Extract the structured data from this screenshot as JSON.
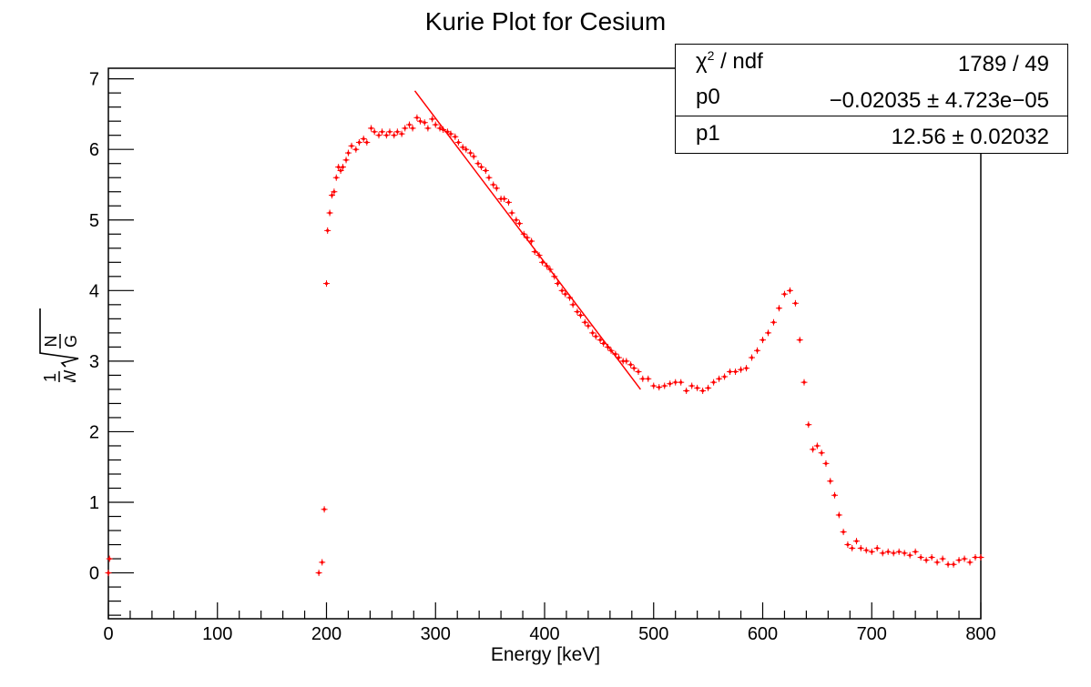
{
  "chart_data": {
    "type": "scatter",
    "title": "Kurie Plot for Cesium",
    "xlabel": "Energy [keV]",
    "ylabel": {
      "num1": "1",
      "den1": "W",
      "num2": "N",
      "den2": "G"
    },
    "xlim": [
      0,
      800
    ],
    "ylim": [
      -0.65,
      7.15
    ],
    "xticks": [
      0,
      100,
      200,
      300,
      400,
      500,
      600,
      700,
      800
    ],
    "xtick_labels": [
      "0",
      "100",
      "200",
      "300",
      "400",
      "500",
      "600",
      "700",
      "800"
    ],
    "yticks": [
      0,
      1,
      2,
      3,
      4,
      5,
      6,
      7
    ],
    "ytick_labels": [
      "0",
      "1",
      "2",
      "3",
      "4",
      "5",
      "6",
      "7"
    ],
    "marker_color": "#ff0000",
    "series": [
      {
        "x": [
          0,
          1,
          193,
          196,
          198,
          200,
          201,
          203,
          205,
          207,
          209,
          211,
          213,
          215,
          218,
          220,
          223,
          227,
          230,
          234,
          237,
          241,
          244,
          248,
          251,
          255,
          258,
          262,
          265,
          269,
          272,
          276,
          279,
          283,
          286,
          290,
          293,
          297,
          300,
          304,
          307,
          311,
          314,
          318,
          321,
          325,
          328,
          332,
          335,
          339,
          342,
          346,
          349,
          353,
          356,
          360,
          363,
          367,
          370,
          374,
          377,
          381,
          384,
          388,
          391,
          395,
          398,
          402,
          405,
          409,
          412,
          416,
          419,
          423,
          426,
          430,
          433,
          437,
          440,
          444,
          447,
          451,
          454,
          458,
          461,
          465,
          468,
          472,
          475,
          479,
          482,
          486,
          490,
          495,
          500,
          505,
          510,
          515,
          520,
          525,
          530,
          535,
          540,
          545,
          550,
          555,
          560,
          565,
          570,
          575,
          580,
          585,
          590,
          595,
          600,
          605,
          610,
          615,
          620,
          625,
          630,
          634,
          638,
          642,
          646,
          650,
          654,
          658,
          662,
          666,
          670,
          674,
          678,
          682,
          686,
          690,
          695,
          700,
          705,
          710,
          715,
          720,
          725,
          730,
          735,
          740,
          745,
          750,
          755,
          760,
          765,
          770,
          775,
          780,
          785,
          790,
          795,
          800
        ],
        "y": [
          0.0,
          0.2,
          0.0,
          0.15,
          0.9,
          4.1,
          4.85,
          5.1,
          5.35,
          5.4,
          5.6,
          5.75,
          5.7,
          5.75,
          5.85,
          5.95,
          6.05,
          6.0,
          6.1,
          6.15,
          6.1,
          6.3,
          6.25,
          6.2,
          6.25,
          6.2,
          6.25,
          6.2,
          6.25,
          6.22,
          6.3,
          6.35,
          6.3,
          6.45,
          6.4,
          6.38,
          6.3,
          6.43,
          6.35,
          6.3,
          6.28,
          6.25,
          6.22,
          6.18,
          6.1,
          6.03,
          6.0,
          5.95,
          5.9,
          5.8,
          5.75,
          5.7,
          5.6,
          5.5,
          5.45,
          5.3,
          5.3,
          5.25,
          5.1,
          5.0,
          4.95,
          4.8,
          4.75,
          4.7,
          4.55,
          4.5,
          4.4,
          4.35,
          4.3,
          4.2,
          4.1,
          4.0,
          3.95,
          3.9,
          3.8,
          3.7,
          3.65,
          3.55,
          3.5,
          3.4,
          3.35,
          3.3,
          3.25,
          3.2,
          3.15,
          3.1,
          3.05,
          3.0,
          3.0,
          2.95,
          2.9,
          2.85,
          2.75,
          2.75,
          2.65,
          2.63,
          2.65,
          2.68,
          2.7,
          2.7,
          2.58,
          2.65,
          2.62,
          2.58,
          2.62,
          2.7,
          2.75,
          2.78,
          2.85,
          2.85,
          2.88,
          2.9,
          3.05,
          3.15,
          3.3,
          3.4,
          3.55,
          3.75,
          3.95,
          4.0,
          3.82,
          3.3,
          2.7,
          2.1,
          1.75,
          1.8,
          1.7,
          1.55,
          1.3,
          1.1,
          0.82,
          0.58,
          0.4,
          0.35,
          0.45,
          0.35,
          0.32,
          0.3,
          0.35,
          0.28,
          0.3,
          0.28,
          0.3,
          0.28,
          0.25,
          0.3,
          0.22,
          0.18,
          0.22,
          0.15,
          0.2,
          0.12,
          0.12,
          0.18,
          0.2,
          0.15,
          0.22,
          0.22
        ]
      }
    ],
    "fit_line": {
      "x": [
        281,
        488
      ],
      "y": [
        6.83,
        2.6
      ],
      "color": "#ff0000"
    },
    "stats": [
      {
        "label_base": "χ",
        "label_sup": "2",
        "label_rest": " / ndf",
        "value": "1789 / 49"
      },
      {
        "label_base": "p0",
        "label_sup": "",
        "label_rest": "",
        "value": "−0.02035 ± 4.723e−05"
      },
      {
        "label_base": "p1",
        "label_sup": "",
        "label_rest": "",
        "value": "12.56 ± 0.02032"
      }
    ]
  }
}
